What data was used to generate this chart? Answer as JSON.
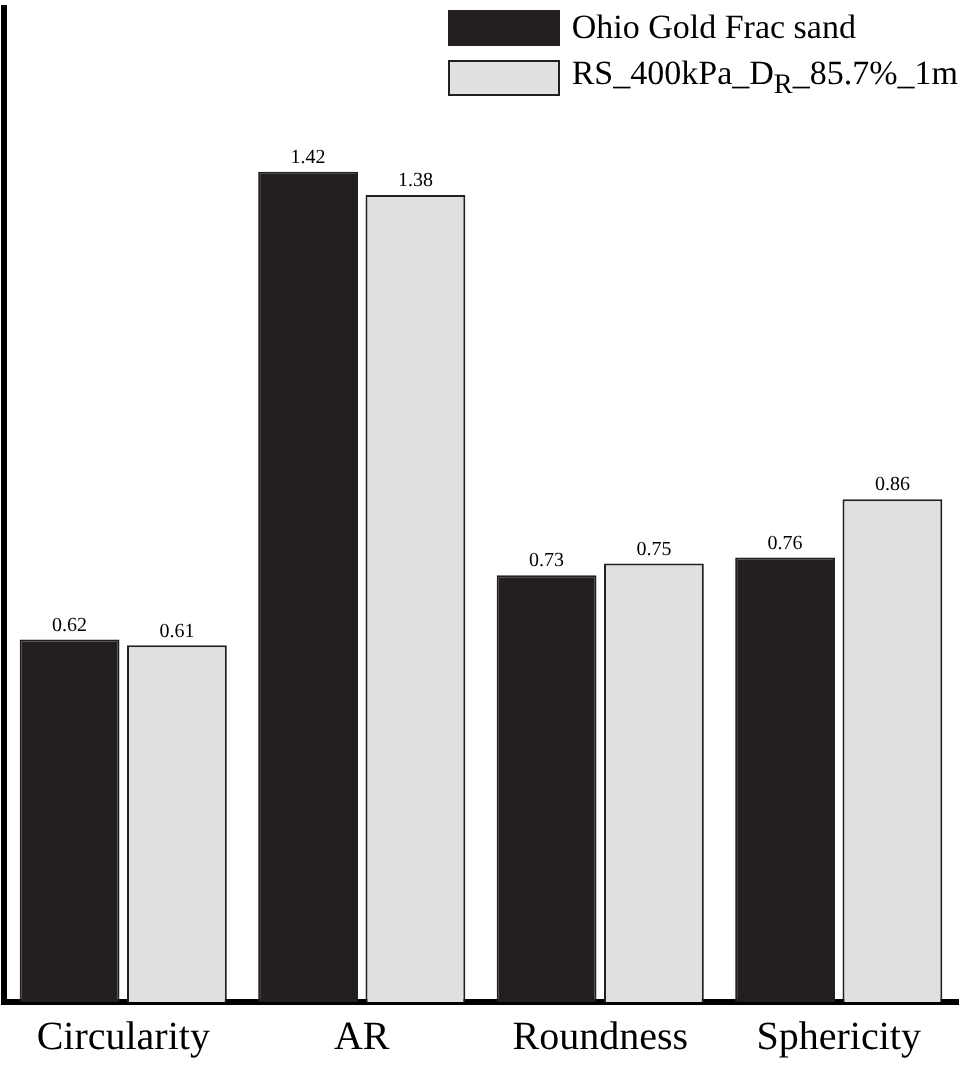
{
  "chart_data": {
    "type": "bar",
    "categories": [
      "Circularity",
      "AR",
      "Roundness",
      "Sphericity"
    ],
    "series": [
      {
        "name": "Ohio Gold Frac sand",
        "color": "#231f20",
        "values": [
          0.62,
          1.42,
          0.73,
          0.76
        ]
      },
      {
        "name": "RS_400kPa_D$_{R}$_85.7%_1m",
        "color": "#e0e0e0",
        "values": [
          0.61,
          1.38,
          0.75,
          0.86
        ]
      }
    ],
    "ylim": [
      0,
      1.7
    ],
    "tick_labels": "x",
    "data_labels": true,
    "legend": "top right",
    "grid": false
  }
}
